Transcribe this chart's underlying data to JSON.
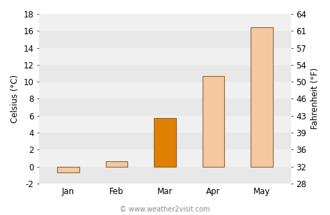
{
  "categories": [
    "Jan",
    "Feb",
    "Mar",
    "Apr",
    "May"
  ],
  "values": [
    -0.7,
    0.6,
    5.7,
    10.7,
    16.4
  ],
  "bar_colors": [
    "#f5c8a0",
    "#f5c8a0",
    "#e08000",
    "#f5c8a0",
    "#f5c8a0"
  ],
  "bar_edgecolors": [
    "#8B6340",
    "#8B6340",
    "#8B6340",
    "#8B6340",
    "#8B6340"
  ],
  "ylabel_left": "Celsius (°C)",
  "ylabel_right": "Fahrenheit (°F)",
  "ylim_left": [
    -2,
    18
  ],
  "yticks_left": [
    -2,
    0,
    2,
    4,
    6,
    8,
    10,
    12,
    14,
    16,
    18
  ],
  "ytick_labels_right": [
    "28",
    "32",
    "36",
    "39",
    "43",
    "46",
    "50",
    "54",
    "57",
    "61",
    "64"
  ],
  "band_colors": [
    "#e8e8e8",
    "#f0f0f0"
  ],
  "fig_background_color": "#ffffff",
  "watermark": "© www.weather2visit.com",
  "bar_width": 0.45,
  "tick_fontsize": 8.5,
  "label_fontsize": 8.5
}
